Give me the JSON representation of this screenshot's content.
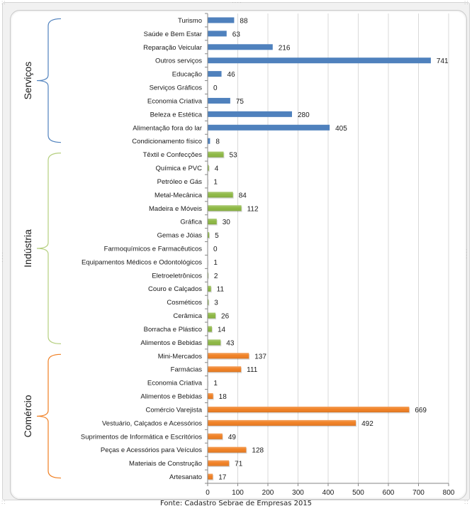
{
  "chart_data": {
    "type": "bar",
    "orientation": "horizontal",
    "title": "",
    "xlabel": "",
    "ylabel": "",
    "xlim": [
      0,
      800
    ],
    "x_ticks": [
      0,
      100,
      200,
      300,
      400,
      500,
      600,
      700,
      800
    ],
    "grid": "vertical",
    "legend": "none",
    "groups": [
      {
        "name": "Serviços",
        "color": "#4F81BD",
        "categories": [
          "Turismo",
          "Saúde e Bem Estar",
          "Reparação Veicular",
          "Outros serviços",
          "Educação",
          "Serviços Gráficos",
          "Economia Criativa",
          "Beleza e Estética",
          "Alimentação fora do lar",
          "Condicionamento físico"
        ],
        "values": [
          88,
          63,
          216,
          741,
          46,
          0,
          75,
          280,
          405,
          8
        ]
      },
      {
        "name": "Indústria",
        "color": "#8DB843",
        "bracket_color": "#B5CF7F",
        "categories": [
          "Têxtil e Confecções",
          "Química e PVC",
          "Petróleo e Gás",
          "Metal-Mecânica",
          "Madeira e Móveis",
          "Gráfica",
          "Gemas e Jóias",
          "Farmoquímicos e Farmacêuticos",
          "Equipamentos Médicos e Odontológicos",
          "Eletroeletrônicos",
          "Couro e Calçados",
          "Cosméticos",
          "Cerâmica",
          "Borracha e Plástico",
          "Alimentos e Bebidas"
        ],
        "values": [
          53,
          4,
          1,
          84,
          112,
          30,
          5,
          0,
          1,
          2,
          11,
          3,
          26,
          14,
          43
        ]
      },
      {
        "name": "Comércio",
        "color": "#F07F22",
        "categories": [
          "Mini-Mercados",
          "Farmácias",
          "Economia Criativa",
          "Alimentos e Bebidas",
          "Comércio Varejista",
          "Vestuário, Calçados e Acessórios",
          "Suprimentos de Informática e Escritórios",
          "Peças e Acessórios para Veículos",
          "Materiais de Construção",
          "Artesanato"
        ],
        "values": [
          137,
          111,
          1,
          18,
          669,
          492,
          49,
          128,
          71,
          17
        ]
      }
    ],
    "source": "Fonte: Cadastro Sebrae de Empresas 2015"
  }
}
